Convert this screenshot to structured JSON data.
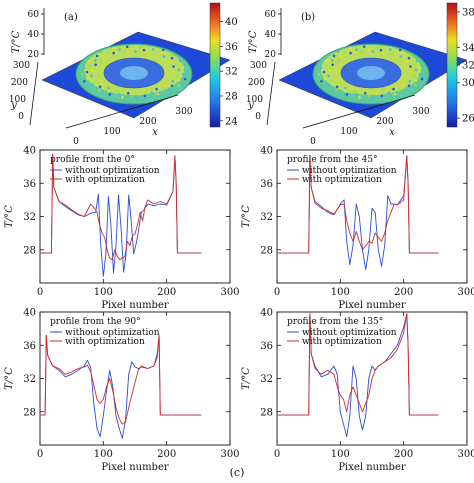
{
  "figure_label": "(c)",
  "colors": {
    "without": "#2a4fd0",
    "with": "#d42a2a",
    "frame": "#111111"
  },
  "chart_data": [
    {
      "type": "surface3d",
      "panel_label": "(a)",
      "zlabel": "T/°C",
      "xlabel": "x",
      "ylabel": "y",
      "z_ticks": [
        "60",
        "40",
        "20"
      ],
      "x_ticks": [
        "0",
        "100",
        "200",
        "300"
      ],
      "y_ticks": [
        "0",
        "100",
        "200",
        "300"
      ],
      "colorbar_ticks": [
        "40",
        "36",
        "32",
        "28",
        "24"
      ],
      "colorbar_range": [
        23,
        43
      ]
    },
    {
      "type": "surface3d",
      "panel_label": "(b)",
      "zlabel": "T/°C",
      "xlabel": "x",
      "ylabel": "y",
      "z_ticks": [
        "60",
        "40",
        "20"
      ],
      "x_ticks": [
        "0",
        "100",
        "200",
        "300"
      ],
      "y_ticks": [
        "0",
        "100",
        "200",
        "300"
      ],
      "colorbar_ticks": [
        "38",
        "34",
        "32",
        "30",
        "26"
      ],
      "colorbar_range": [
        25,
        39
      ]
    },
    {
      "type": "line",
      "annotation": "profile from the 0°",
      "xlabel": "Pixel number",
      "ylabel": "T/°C",
      "xlim": [
        0,
        300
      ],
      "ylim": [
        24,
        40
      ],
      "x_ticks": [
        "0",
        "100",
        "200",
        "300"
      ],
      "y_ticks": [
        "28",
        "32",
        "36",
        "40"
      ],
      "series": [
        {
          "name": "without optimization",
          "x": [
            0,
            18,
            20,
            22,
            30,
            40,
            50,
            60,
            70,
            80,
            88,
            92,
            96,
            100,
            104,
            108,
            112,
            116,
            120,
            124,
            128,
            132,
            136,
            140,
            144,
            148,
            152,
            156,
            160,
            164,
            170,
            180,
            190,
            200,
            210,
            213,
            215,
            217,
            220,
            255
          ],
          "y": [
            27.6,
            27.6,
            39.5,
            35.5,
            33.8,
            33.2,
            32.7,
            32.2,
            32,
            32.4,
            32.5,
            34.7,
            28.5,
            24.8,
            27.5,
            34.4,
            31,
            25.2,
            28.5,
            34.6,
            30.5,
            25.3,
            27.5,
            34.6,
            31.5,
            27.5,
            28.8,
            30.5,
            32.5,
            32.8,
            33.5,
            33.3,
            33.5,
            33.4,
            35,
            39.3,
            36,
            27.6,
            27.6,
            27.6
          ]
        },
        {
          "name": "with optimization",
          "x": [
            0,
            18,
            20,
            22,
            30,
            40,
            50,
            60,
            70,
            80,
            86,
            90,
            94,
            98,
            102,
            106,
            110,
            114,
            118,
            122,
            126,
            130,
            134,
            138,
            142,
            146,
            150,
            154,
            158,
            162,
            166,
            170,
            180,
            190,
            200,
            210,
            213,
            215,
            217,
            220,
            255
          ],
          "y": [
            27.6,
            27.6,
            39.5,
            35.5,
            33.8,
            33.4,
            32.8,
            32.3,
            32,
            33.5,
            33,
            32.5,
            31,
            30,
            29.5,
            28,
            27,
            26.8,
            28,
            27.2,
            26.8,
            27,
            27.2,
            29,
            28.5,
            29.7,
            29.9,
            31,
            32.5,
            31.5,
            33.2,
            34,
            33.5,
            33.8,
            33.5,
            35,
            39.3,
            36,
            27.6,
            27.6,
            27.6
          ]
        }
      ]
    },
    {
      "type": "line",
      "annotation": "profile from the 45°",
      "xlabel": "Pixel number",
      "ylabel": "T/°C",
      "xlim": [
        0,
        300
      ],
      "ylim": [
        24,
        40
      ],
      "x_ticks": [
        "0",
        "100",
        "200",
        "300"
      ],
      "y_ticks": [
        "28",
        "32",
        "36",
        "40"
      ],
      "series": [
        {
          "name": "without optimization",
          "x": [
            0,
            50,
            52,
            54,
            60,
            70,
            80,
            90,
            100,
            106,
            110,
            115,
            120,
            125,
            130,
            135,
            140,
            145,
            150,
            155,
            160,
            165,
            170,
            175,
            180,
            185,
            190,
            200,
            205,
            207,
            209,
            212,
            255
          ],
          "y": [
            27.6,
            27.6,
            39.2,
            35.5,
            33.8,
            33.2,
            32.5,
            32.2,
            33.5,
            34,
            29,
            26.2,
            28.5,
            33.5,
            32,
            28,
            25.6,
            28,
            33,
            32.5,
            28,
            26,
            28.5,
            34.5,
            33.5,
            33.5,
            33.4,
            34.5,
            39.3,
            36,
            27.6,
            27.6,
            27.6
          ]
        },
        {
          "name": "with optimization",
          "x": [
            0,
            50,
            52,
            54,
            60,
            70,
            80,
            90,
            100,
            106,
            110,
            115,
            120,
            125,
            130,
            135,
            140,
            145,
            150,
            155,
            160,
            165,
            170,
            175,
            180,
            185,
            190,
            200,
            205,
            207,
            209,
            212,
            255
          ],
          "y": [
            27.6,
            27.6,
            39.2,
            35.5,
            33.6,
            33,
            32.7,
            32.3,
            33.4,
            33.5,
            31.5,
            30,
            29,
            30.2,
            29,
            28,
            28.5,
            29,
            28.8,
            30,
            29.5,
            29,
            30,
            31.5,
            32.5,
            33.5,
            33.4,
            34,
            39.3,
            36,
            27.6,
            27.6,
            27.6
          ]
        }
      ]
    },
    {
      "type": "line",
      "annotation": "profile from the 90°",
      "xlabel": "Pixel number",
      "ylabel": "T/°C",
      "xlim": [
        0,
        300
      ],
      "ylim": [
        24,
        40
      ],
      "x_ticks": [
        "0",
        "100",
        "200",
        "300"
      ],
      "y_ticks": [
        "28",
        "32",
        "36",
        "40"
      ],
      "series": [
        {
          "name": "without optimization",
          "x": [
            0,
            8,
            10,
            12,
            20,
            30,
            40,
            50,
            60,
            70,
            75,
            80,
            85,
            90,
            95,
            100,
            105,
            110,
            115,
            120,
            125,
            130,
            135,
            140,
            145,
            150,
            155,
            160,
            170,
            180,
            185,
            188,
            190,
            192,
            255
          ],
          "y": [
            27.6,
            27.6,
            37.2,
            34.8,
            33.5,
            33,
            32.2,
            32.5,
            33,
            33.5,
            34.2,
            33.3,
            29,
            26,
            25,
            27.5,
            30.5,
            33,
            31,
            27.5,
            26,
            24.8,
            27,
            32.5,
            34,
            33.4,
            33.2,
            33.4,
            33.2,
            33.5,
            35,
            37.2,
            27.6,
            27.6,
            27.6
          ]
        },
        {
          "name": "with optimization",
          "x": [
            0,
            8,
            10,
            12,
            20,
            30,
            40,
            50,
            60,
            70,
            75,
            80,
            85,
            90,
            95,
            100,
            105,
            110,
            115,
            120,
            125,
            130,
            135,
            140,
            145,
            150,
            155,
            160,
            170,
            180,
            185,
            188,
            190,
            192,
            255
          ],
          "y": [
            27.6,
            27.6,
            37.2,
            34.8,
            33.5,
            33.2,
            32.5,
            32.8,
            33.2,
            33.4,
            33.6,
            32.8,
            31.2,
            29.5,
            29,
            29.5,
            31,
            32,
            30.5,
            28.5,
            27.2,
            26.5,
            26.8,
            28.5,
            30,
            31.5,
            33,
            33.5,
            33.2,
            33.5,
            34.5,
            37.2,
            27.6,
            27.6,
            27.6
          ]
        }
      ]
    },
    {
      "type": "line",
      "annotation": "profile from the 135°",
      "xlabel": "Pixel number",
      "ylabel": "T/°C",
      "xlim": [
        0,
        300
      ],
      "ylim": [
        24,
        40
      ],
      "x_ticks": [
        "0",
        "100",
        "200",
        "300"
      ],
      "y_ticks": [
        "28",
        "32",
        "36",
        "40"
      ],
      "series": [
        {
          "name": "without optimization",
          "x": [
            0,
            50,
            52,
            54,
            60,
            70,
            80,
            90,
            95,
            100,
            105,
            110,
            115,
            120,
            125,
            130,
            135,
            140,
            145,
            150,
            155,
            160,
            170,
            180,
            190,
            200,
            205,
            207,
            209,
            212,
            255
          ],
          "y": [
            27.6,
            27.6,
            39.8,
            35,
            33.5,
            32.2,
            32.5,
            33.5,
            32.5,
            28,
            26.5,
            25,
            27.5,
            33.5,
            32,
            27.5,
            25.8,
            27.5,
            32,
            33.5,
            33,
            33.5,
            34,
            35,
            36,
            38.2,
            39.8,
            36,
            27.6,
            27.6,
            27.6
          ]
        },
        {
          "name": "with optimization",
          "x": [
            0,
            50,
            52,
            54,
            60,
            70,
            80,
            90,
            95,
            100,
            105,
            110,
            115,
            120,
            125,
            130,
            135,
            140,
            145,
            150,
            155,
            160,
            170,
            180,
            190,
            200,
            205,
            207,
            209,
            212,
            255
          ],
          "y": [
            27.6,
            27.6,
            39.8,
            35,
            33.2,
            32.5,
            33,
            32.5,
            31,
            30,
            29.5,
            28,
            30,
            31,
            30,
            29,
            28,
            29,
            30,
            32,
            33,
            33.5,
            34,
            34.5,
            35.5,
            37.5,
            39.8,
            36,
            27.6,
            27.6,
            27.6
          ]
        }
      ]
    }
  ]
}
